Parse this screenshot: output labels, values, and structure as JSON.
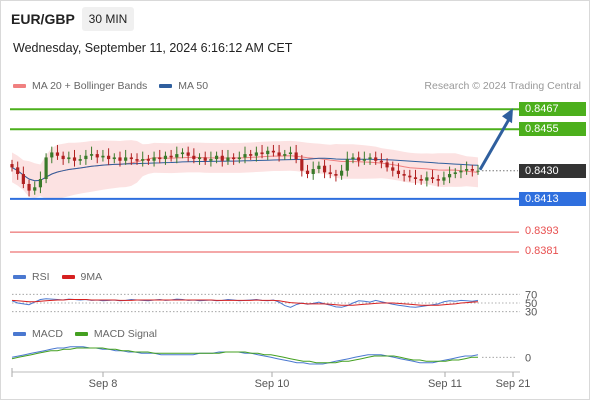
{
  "header": {
    "symbol": "EUR/GBP",
    "timeframe": "30 MIN",
    "datetime": "Wednesday, September 11, 2024 6:16:12 AM CET",
    "credit": "Research © 2024 Trading Central"
  },
  "legends": {
    "price": [
      {
        "label": "MA 20 + Bollinger Bands",
        "color": "#f08080"
      },
      {
        "label": "MA 50",
        "color": "#2f5f9e"
      }
    ],
    "rsi": [
      {
        "label": "RSI",
        "color": "#4a78d0"
      },
      {
        "label": "9MA",
        "color": "#d62020"
      }
    ],
    "macd": [
      {
        "label": "MACD",
        "color": "#4a78d0"
      },
      {
        "label": "MACD Signal",
        "color": "#44a020"
      }
    ]
  },
  "colors": {
    "resistance": "#4caf1c",
    "pivot": "#2f6fde",
    "support": "#e85050",
    "last_price": "#333333",
    "arrow": "#2f5f9e",
    "bull": "#3a7a2a",
    "bear": "#b02020",
    "band": "#fbd8d8"
  },
  "chart_data": [
    {
      "type": "candlestick",
      "title": "EUR/GBP",
      "x_ticks": [
        "Sep 8",
        "Sep 10",
        "Sep 11",
        "Sep 21"
      ],
      "ylim": [
        0.8375,
        0.8475
      ],
      "last_price": 0.843,
      "levels": [
        {
          "value": 0.8467,
          "role": "resistance",
          "label": "0.8467"
        },
        {
          "value": 0.8455,
          "role": "resistance",
          "label": "0.8455"
        },
        {
          "value": 0.8413,
          "role": "pivot",
          "label": "0.8413"
        },
        {
          "value": 0.8393,
          "role": "support",
          "label": "0.8393"
        },
        {
          "value": 0.8381,
          "role": "support",
          "label": "0.8381"
        }
      ],
      "last_price_label": "0.8430",
      "close": [
        0.8432,
        0.8428,
        0.8422,
        0.8418,
        0.842,
        0.8425,
        0.8438,
        0.8441,
        0.8439,
        0.8437,
        0.8438,
        0.8436,
        0.8437,
        0.8439,
        0.844,
        0.8438,
        0.8439,
        0.8437,
        0.8438,
        0.8436,
        0.8438,
        0.8437,
        0.8436,
        0.8437,
        0.8436,
        0.8438,
        0.8437,
        0.8439,
        0.8438,
        0.844,
        0.8441,
        0.8439,
        0.8437,
        0.8438,
        0.8436,
        0.8437,
        0.8439,
        0.8436,
        0.8438,
        0.8437,
        0.8438,
        0.844,
        0.8439,
        0.8441,
        0.844,
        0.8442,
        0.8441,
        0.8439,
        0.844,
        0.8441,
        0.8437,
        0.843,
        0.8428,
        0.8431,
        0.8433,
        0.8429,
        0.8428,
        0.8427,
        0.843,
        0.8437,
        0.8438,
        0.8436,
        0.8437,
        0.8438,
        0.8436,
        0.8435,
        0.8432,
        0.843,
        0.8428,
        0.8427,
        0.8426,
        0.8425,
        0.8424,
        0.8426,
        0.8425,
        0.8424,
        0.8426,
        0.8428,
        0.8429,
        0.843,
        0.8431,
        0.843,
        0.843
      ]
    },
    {
      "type": "line",
      "title": "RSI",
      "levels": [
        70,
        50,
        30
      ],
      "ylim": [
        20,
        80
      ],
      "series": [
        {
          "name": "RSI",
          "values": [
            55,
            50,
            48,
            46,
            52,
            58,
            60,
            59,
            58,
            57,
            59,
            58,
            57,
            58,
            56,
            57,
            55,
            56,
            57,
            55,
            56,
            58,
            57,
            56,
            55,
            57,
            58,
            56,
            57,
            59,
            58,
            56,
            57,
            55,
            56,
            57,
            55,
            56,
            58,
            57,
            55,
            56,
            57,
            58,
            56,
            55,
            57,
            52,
            44,
            40,
            46,
            50,
            47,
            49,
            52,
            48,
            45,
            41,
            40,
            44,
            50,
            55,
            54,
            52,
            56,
            53,
            50,
            47,
            45,
            43,
            41,
            40,
            42,
            44,
            46,
            48,
            53,
            55,
            54,
            56,
            55,
            54,
            56
          ]
        },
        {
          "name": "9MA",
          "values": [
            56,
            55,
            54,
            53,
            53,
            54,
            55,
            56,
            57,
            57,
            58,
            58,
            58,
            58,
            57,
            57,
            57,
            57,
            57,
            56,
            56,
            56,
            57,
            57,
            57,
            57,
            57,
            57,
            57,
            57,
            57,
            57,
            57,
            57,
            57,
            57,
            56,
            56,
            56,
            56,
            56,
            56,
            56,
            57,
            56,
            56,
            56,
            55,
            53,
            51,
            50,
            49,
            48,
            48,
            48,
            48,
            47,
            46,
            45,
            45,
            45,
            46,
            47,
            48,
            49,
            50,
            50,
            50,
            49,
            48,
            47,
            46,
            45,
            45,
            45,
            45,
            46,
            47,
            48,
            50,
            51,
            52,
            53
          ]
        }
      ]
    },
    {
      "type": "line",
      "title": "MACD",
      "levels": [
        0
      ],
      "level_label": "0",
      "ylim": [
        -0.0008,
        0.001
      ],
      "series": [
        {
          "name": "MACD",
          "values": [
            0.0,
            0.0001,
            0.0002,
            0.0003,
            0.0004,
            0.0005,
            0.0006,
            0.0007,
            0.0007,
            0.0008,
            0.0008,
            0.0008,
            0.0007,
            0.0007,
            0.0006,
            0.0006,
            0.0005,
            0.0005,
            0.0004,
            0.0004,
            0.0003,
            0.0003,
            0.0003,
            0.0002,
            0.0002,
            0.0002,
            0.0002,
            0.0002,
            0.0002,
            0.0003,
            0.0003,
            0.0003,
            0.0004,
            0.0004,
            0.0004,
            0.0004,
            0.0003,
            0.0003,
            0.0002,
            0.0001,
            0.0,
            -0.0001,
            -0.0002,
            -0.0003,
            -0.0004,
            -0.0004,
            -0.0005,
            -0.0005,
            -0.0005,
            -0.0004,
            -0.0003,
            -0.0002,
            -0.0001,
            0.0,
            0.0001,
            0.0002,
            0.0002,
            0.0002,
            0.0001,
            0.0,
            -0.0001,
            -0.0002,
            -0.0003,
            -0.0004,
            -0.0004,
            -0.0004,
            -0.0003,
            -0.0002,
            -0.0001,
            0.0,
            0.0001,
            0.0001,
            0.0002
          ]
        },
        {
          "name": "MACD Signal",
          "values": [
            -0.0001,
            0.0,
            0.0001,
            0.0002,
            0.0003,
            0.0004,
            0.0005,
            0.0005,
            0.0006,
            0.0006,
            0.0007,
            0.0007,
            0.0007,
            0.0007,
            0.0007,
            0.0006,
            0.0006,
            0.0005,
            0.0005,
            0.0004,
            0.0004,
            0.0004,
            0.0003,
            0.0003,
            0.0003,
            0.0003,
            0.0003,
            0.0003,
            0.0003,
            0.0003,
            0.0003,
            0.0003,
            0.0003,
            0.0004,
            0.0004,
            0.0004,
            0.0004,
            0.0003,
            0.0003,
            0.0002,
            0.0002,
            0.0001,
            0.0,
            -0.0001,
            -0.0002,
            -0.0003,
            -0.0003,
            -0.0004,
            -0.0004,
            -0.0004,
            -0.0004,
            -0.0003,
            -0.0003,
            -0.0002,
            -0.0001,
            0.0,
            0.0001,
            0.0001,
            0.0001,
            0.0001,
            0.0,
            -0.0001,
            -0.0002,
            -0.0002,
            -0.0003,
            -0.0003,
            -0.0003,
            -0.0003,
            -0.0002,
            -0.0002,
            -0.0001,
            0.0,
            0.0
          ]
        }
      ]
    }
  ]
}
